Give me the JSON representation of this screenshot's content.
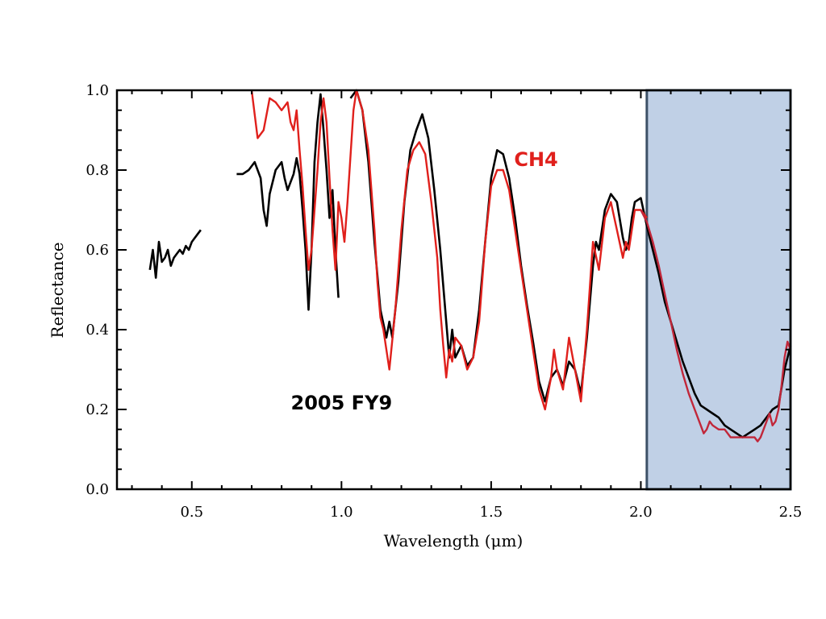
{
  "chart_data": {
    "type": "line",
    "xlabel": "Wavelength (μm)",
    "ylabel": "Reflectance",
    "xlim": [
      0.25,
      2.5
    ],
    "ylim": [
      0.0,
      1.0
    ],
    "x_ticks": [
      0.5,
      1.0,
      1.5,
      2.0,
      2.5
    ],
    "x_tick_labels": [
      "0.5",
      "1.0",
      "1.5",
      "2.0",
      "2.5"
    ],
    "y_ticks": [
      0.0,
      0.2,
      0.4,
      0.6,
      0.8,
      1.0
    ],
    "y_tick_labels": [
      "0.0",
      "0.2",
      "0.4",
      "0.6",
      "0.8",
      "1.0"
    ],
    "highlight_region": {
      "x_start": 2.02,
      "x_end": 2.5,
      "color": "#c0d0e6",
      "border": "#3c5066"
    },
    "annotations": [
      {
        "text": "CH4",
        "x": 1.65,
        "y": 0.81,
        "color": "#e0201c"
      },
      {
        "text": "2005 FY9",
        "x": 1.0,
        "y": 0.2,
        "color": "#000000"
      }
    ],
    "series": [
      {
        "color": "#000000",
        "segments": [
          [
            [
              0.36,
              0.55
            ],
            [
              0.37,
              0.6
            ],
            [
              0.38,
              0.53
            ],
            [
              0.39,
              0.62
            ],
            [
              0.4,
              0.57
            ],
            [
              0.41,
              0.58
            ],
            [
              0.42,
              0.6
            ],
            [
              0.43,
              0.56
            ],
            [
              0.44,
              0.58
            ],
            [
              0.45,
              0.59
            ],
            [
              0.46,
              0.6
            ],
            [
              0.47,
              0.59
            ],
            [
              0.48,
              0.61
            ],
            [
              0.49,
              0.6
            ],
            [
              0.5,
              0.62
            ],
            [
              0.51,
              0.63
            ],
            [
              0.52,
              0.64
            ],
            [
              0.53,
              0.65
            ]
          ],
          [
            [
              0.65,
              0.79
            ],
            [
              0.67,
              0.79
            ],
            [
              0.69,
              0.8
            ],
            [
              0.71,
              0.82
            ],
            [
              0.73,
              0.78
            ],
            [
              0.74,
              0.7
            ],
            [
              0.75,
              0.66
            ],
            [
              0.76,
              0.74
            ],
            [
              0.78,
              0.8
            ],
            [
              0.8,
              0.82
            ],
            [
              0.81,
              0.78
            ],
            [
              0.82,
              0.75
            ],
            [
              0.84,
              0.79
            ],
            [
              0.85,
              0.83
            ],
            [
              0.86,
              0.79
            ],
            [
              0.87,
              0.7
            ],
            [
              0.88,
              0.6
            ],
            [
              0.89,
              0.45
            ],
            [
              0.9,
              0.6
            ],
            [
              0.91,
              0.82
            ],
            [
              0.92,
              0.92
            ],
            [
              0.93,
              0.99
            ],
            [
              0.94,
              0.9
            ],
            [
              0.95,
              0.8
            ],
            [
              0.96,
              0.68
            ],
            [
              0.97,
              0.75
            ],
            [
              0.98,
              0.6
            ],
            [
              0.99,
              0.48
            ]
          ],
          [
            [
              1.03,
              0.98
            ],
            [
              1.05,
              1.0
            ],
            [
              1.07,
              0.95
            ],
            [
              1.09,
              0.82
            ],
            [
              1.11,
              0.62
            ],
            [
              1.13,
              0.45
            ],
            [
              1.15,
              0.38
            ],
            [
              1.16,
              0.42
            ],
            [
              1.17,
              0.38
            ],
            [
              1.19,
              0.52
            ],
            [
              1.21,
              0.72
            ],
            [
              1.23,
              0.85
            ],
            [
              1.25,
              0.9
            ],
            [
              1.27,
              0.94
            ],
            [
              1.29,
              0.88
            ],
            [
              1.31,
              0.75
            ],
            [
              1.33,
              0.6
            ],
            [
              1.35,
              0.42
            ],
            [
              1.36,
              0.33
            ],
            [
              1.37,
              0.4
            ],
            [
              1.38,
              0.33
            ],
            [
              1.4,
              0.36
            ],
            [
              1.42,
              0.31
            ],
            [
              1.44,
              0.33
            ],
            [
              1.46,
              0.45
            ],
            [
              1.48,
              0.62
            ],
            [
              1.5,
              0.78
            ],
            [
              1.52,
              0.85
            ],
            [
              1.54,
              0.84
            ],
            [
              1.56,
              0.78
            ],
            [
              1.58,
              0.68
            ],
            [
              1.6,
              0.56
            ],
            [
              1.62,
              0.46
            ],
            [
              1.64,
              0.37
            ],
            [
              1.66,
              0.27
            ],
            [
              1.68,
              0.22
            ],
            [
              1.7,
              0.28
            ],
            [
              1.72,
              0.3
            ],
            [
              1.74,
              0.26
            ],
            [
              1.76,
              0.32
            ],
            [
              1.78,
              0.3
            ],
            [
              1.8,
              0.24
            ],
            [
              1.82,
              0.38
            ],
            [
              1.84,
              0.56
            ],
            [
              1.85,
              0.62
            ],
            [
              1.86,
              0.6
            ],
            [
              1.88,
              0.7
            ],
            [
              1.9,
              0.74
            ],
            [
              1.92,
              0.72
            ],
            [
              1.94,
              0.63
            ],
            [
              1.95,
              0.6
            ],
            [
              1.96,
              0.62
            ],
            [
              1.97,
              0.68
            ],
            [
              1.98,
              0.72
            ],
            [
              2.0,
              0.73
            ],
            [
              2.02,
              0.66
            ],
            [
              2.04,
              0.6
            ],
            [
              2.06,
              0.54
            ],
            [
              2.08,
              0.47
            ],
            [
              2.1,
              0.42
            ],
            [
              2.12,
              0.37
            ],
            [
              2.14,
              0.32
            ],
            [
              2.16,
              0.28
            ],
            [
              2.18,
              0.24
            ],
            [
              2.2,
              0.21
            ],
            [
              2.22,
              0.2
            ],
            [
              2.24,
              0.19
            ],
            [
              2.26,
              0.18
            ],
            [
              2.28,
              0.16
            ],
            [
              2.3,
              0.15
            ],
            [
              2.32,
              0.14
            ],
            [
              2.34,
              0.13
            ],
            [
              2.36,
              0.14
            ],
            [
              2.38,
              0.15
            ],
            [
              2.4,
              0.16
            ],
            [
              2.42,
              0.18
            ],
            [
              2.44,
              0.2
            ],
            [
              2.46,
              0.21
            ],
            [
              2.48,
              0.3
            ],
            [
              2.5,
              0.36
            ]
          ]
        ]
      },
      {
        "color": "#e0201c",
        "segments": [
          [
            [
              0.7,
              1.0
            ],
            [
              0.72,
              0.88
            ],
            [
              0.74,
              0.9
            ],
            [
              0.76,
              0.98
            ],
            [
              0.78,
              0.97
            ],
            [
              0.8,
              0.95
            ],
            [
              0.82,
              0.97
            ],
            [
              0.83,
              0.92
            ],
            [
              0.84,
              0.9
            ],
            [
              0.85,
              0.95
            ],
            [
              0.86,
              0.85
            ],
            [
              0.87,
              0.76
            ],
            [
              0.88,
              0.65
            ],
            [
              0.89,
              0.55
            ],
            [
              0.9,
              0.6
            ],
            [
              0.92,
              0.8
            ],
            [
              0.93,
              0.92
            ],
            [
              0.94,
              0.98
            ],
            [
              0.95,
              0.92
            ],
            [
              0.96,
              0.78
            ],
            [
              0.97,
              0.65
            ],
            [
              0.98,
              0.55
            ],
            [
              0.99,
              0.72
            ],
            [
              1.0,
              0.68
            ],
            [
              1.01,
              0.62
            ],
            [
              1.02,
              0.72
            ],
            [
              1.04,
              0.95
            ],
            [
              1.05,
              1.0
            ],
            [
              1.07,
              0.95
            ],
            [
              1.09,
              0.85
            ],
            [
              1.11,
              0.65
            ],
            [
              1.12,
              0.52
            ],
            [
              1.13,
              0.43
            ],
            [
              1.14,
              0.4
            ],
            [
              1.15,
              0.35
            ],
            [
              1.16,
              0.3
            ],
            [
              1.18,
              0.45
            ],
            [
              1.2,
              0.65
            ],
            [
              1.22,
              0.8
            ],
            [
              1.24,
              0.85
            ],
            [
              1.26,
              0.87
            ],
            [
              1.28,
              0.84
            ],
            [
              1.3,
              0.72
            ],
            [
              1.32,
              0.58
            ],
            [
              1.33,
              0.45
            ],
            [
              1.34,
              0.36
            ],
            [
              1.35,
              0.28
            ],
            [
              1.36,
              0.35
            ],
            [
              1.37,
              0.32
            ],
            [
              1.38,
              0.38
            ],
            [
              1.4,
              0.36
            ],
            [
              1.42,
              0.3
            ],
            [
              1.44,
              0.33
            ],
            [
              1.46,
              0.42
            ],
            [
              1.48,
              0.62
            ],
            [
              1.5,
              0.76
            ],
            [
              1.52,
              0.8
            ],
            [
              1.54,
              0.8
            ],
            [
              1.56,
              0.75
            ],
            [
              1.58,
              0.65
            ],
            [
              1.6,
              0.55
            ],
            [
              1.62,
              0.45
            ],
            [
              1.64,
              0.35
            ],
            [
              1.66,
              0.25
            ],
            [
              1.68,
              0.2
            ],
            [
              1.7,
              0.28
            ],
            [
              1.71,
              0.35
            ],
            [
              1.72,
              0.3
            ],
            [
              1.74,
              0.25
            ],
            [
              1.76,
              0.38
            ],
            [
              1.78,
              0.3
            ],
            [
              1.8,
              0.22
            ],
            [
              1.82,
              0.4
            ],
            [
              1.84,
              0.62
            ],
            [
              1.86,
              0.55
            ],
            [
              1.88,
              0.68
            ],
            [
              1.9,
              0.72
            ],
            [
              1.92,
              0.65
            ],
            [
              1.94,
              0.58
            ],
            [
              1.95,
              0.62
            ],
            [
              1.96,
              0.6
            ],
            [
              1.98,
              0.7
            ],
            [
              2.0,
              0.7
            ],
            [
              2.02,
              0.68
            ]
          ]
        ]
      },
      {
        "color": "#c1273a",
        "segments": [
          [
            [
              2.0,
              0.7
            ],
            [
              2.02,
              0.67
            ],
            [
              2.04,
              0.62
            ],
            [
              2.06,
              0.56
            ],
            [
              2.08,
              0.49
            ],
            [
              2.1,
              0.42
            ],
            [
              2.12,
              0.35
            ],
            [
              2.14,
              0.29
            ],
            [
              2.16,
              0.24
            ],
            [
              2.18,
              0.2
            ],
            [
              2.2,
              0.16
            ],
            [
              2.21,
              0.14
            ],
            [
              2.22,
              0.15
            ],
            [
              2.23,
              0.17
            ],
            [
              2.24,
              0.16
            ],
            [
              2.26,
              0.15
            ],
            [
              2.28,
              0.15
            ],
            [
              2.3,
              0.13
            ],
            [
              2.32,
              0.13
            ],
            [
              2.34,
              0.13
            ],
            [
              2.36,
              0.13
            ],
            [
              2.38,
              0.13
            ],
            [
              2.39,
              0.12
            ],
            [
              2.4,
              0.13
            ],
            [
              2.41,
              0.15
            ],
            [
              2.42,
              0.17
            ],
            [
              2.43,
              0.19
            ],
            [
              2.44,
              0.16
            ],
            [
              2.45,
              0.17
            ],
            [
              2.46,
              0.2
            ],
            [
              2.47,
              0.26
            ],
            [
              2.48,
              0.33
            ],
            [
              2.49,
              0.37
            ],
            [
              2.5,
              0.35
            ]
          ]
        ]
      }
    ]
  }
}
